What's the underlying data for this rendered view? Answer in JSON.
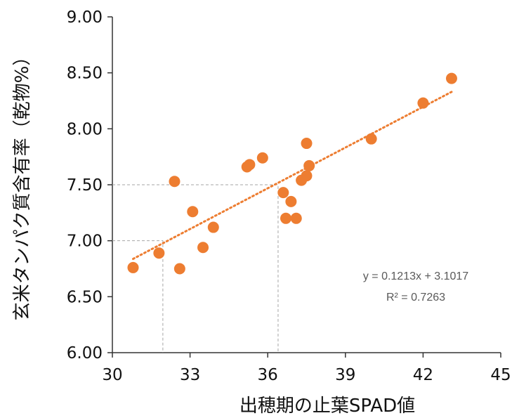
{
  "chart_data": {
    "type": "scatter",
    "title": "",
    "xlabel": "出穂期の止葉SPAD値",
    "ylabel": "玄米タンパク質含有率（乾物%）",
    "xlim": [
      30,
      45
    ],
    "ylim": [
      6.0,
      9.0
    ],
    "x_ticks": [
      30,
      33,
      36,
      39,
      42,
      45
    ],
    "x_tick_labels": [
      "30",
      "33",
      "36",
      "39",
      "42",
      "45"
    ],
    "y_ticks": [
      6.0,
      6.5,
      7.0,
      7.5,
      8.0,
      8.5,
      9.0
    ],
    "y_tick_labels": [
      "6.00",
      "6.50",
      "7.00",
      "7.50",
      "8.00",
      "8.50",
      "9.00"
    ],
    "grid": false,
    "point_color": "#ED7D31",
    "trendline_color": "#ED7D31",
    "guide_color": "#A6A6A6",
    "points": [
      {
        "x": 30.8,
        "y": 6.76
      },
      {
        "x": 31.8,
        "y": 6.89
      },
      {
        "x": 32.4,
        "y": 7.53
      },
      {
        "x": 32.6,
        "y": 6.75
      },
      {
        "x": 33.1,
        "y": 7.26
      },
      {
        "x": 33.5,
        "y": 6.94
      },
      {
        "x": 33.9,
        "y": 7.12
      },
      {
        "x": 35.2,
        "y": 7.66
      },
      {
        "x": 35.3,
        "y": 7.68
      },
      {
        "x": 35.8,
        "y": 7.74
      },
      {
        "x": 36.6,
        "y": 7.43
      },
      {
        "x": 36.7,
        "y": 7.2
      },
      {
        "x": 36.9,
        "y": 7.35
      },
      {
        "x": 37.1,
        "y": 7.2
      },
      {
        "x": 37.3,
        "y": 7.54
      },
      {
        "x": 37.5,
        "y": 7.58
      },
      {
        "x": 37.5,
        "y": 7.87
      },
      {
        "x": 37.6,
        "y": 7.67
      },
      {
        "x": 40.0,
        "y": 7.91
      },
      {
        "x": 42.0,
        "y": 8.23
      },
      {
        "x": 43.1,
        "y": 8.45
      }
    ],
    "trendline": {
      "slope": 0.1213,
      "intercept": 3.1017,
      "x_range": [
        30.8,
        43.1
      ],
      "equation_label": "y = 0.1213x + 3.1017",
      "r2_label": "R² = 0.7263"
    },
    "guides": [
      {
        "x": 31.95,
        "y": 7.0
      },
      {
        "x": 36.4,
        "y": 7.5
      }
    ]
  }
}
